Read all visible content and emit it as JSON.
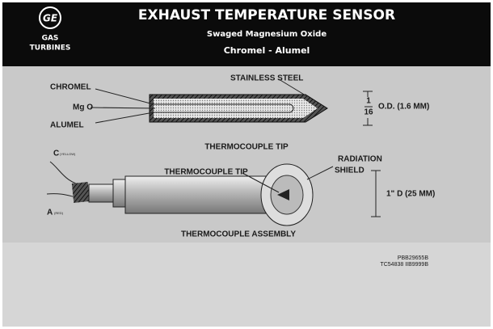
{
  "header": {
    "logo": "GE",
    "company_line1": "GAS",
    "company_line2": "TURBINES",
    "title": "EXHAUST TEMPERATURE SENSOR",
    "subtitle": "Swaged Magnesium Oxide",
    "subtitle2": "Chromel - Alumel"
  },
  "tip_diagram": {
    "chromel": "CHROMEL",
    "mgo": "Mg O",
    "alumel": "ALUMEL",
    "sheath": "STAINLESS STEEL",
    "fraction_numerator": "1",
    "fraction_denominator": "16",
    "diameter": "O.D. (1.6 MM)",
    "caption": "THERMOCOUPLE TIP"
  },
  "assembly_diagram": {
    "lead_c": "C",
    "lead_c_color": "(YELLOW)",
    "lead_a": "A",
    "lead_a_color": "(RED)",
    "tip": "THERMOCOUPLE TIP",
    "shield_line1": "RADIATION",
    "shield_line2": "SHIELD",
    "diameter": "1\" D (25 MM)",
    "caption": "THERMOCOUPLE ASSEMBLY"
  },
  "codes": [
    "PBB29655B",
    "TC54838 IIB9999B"
  ]
}
